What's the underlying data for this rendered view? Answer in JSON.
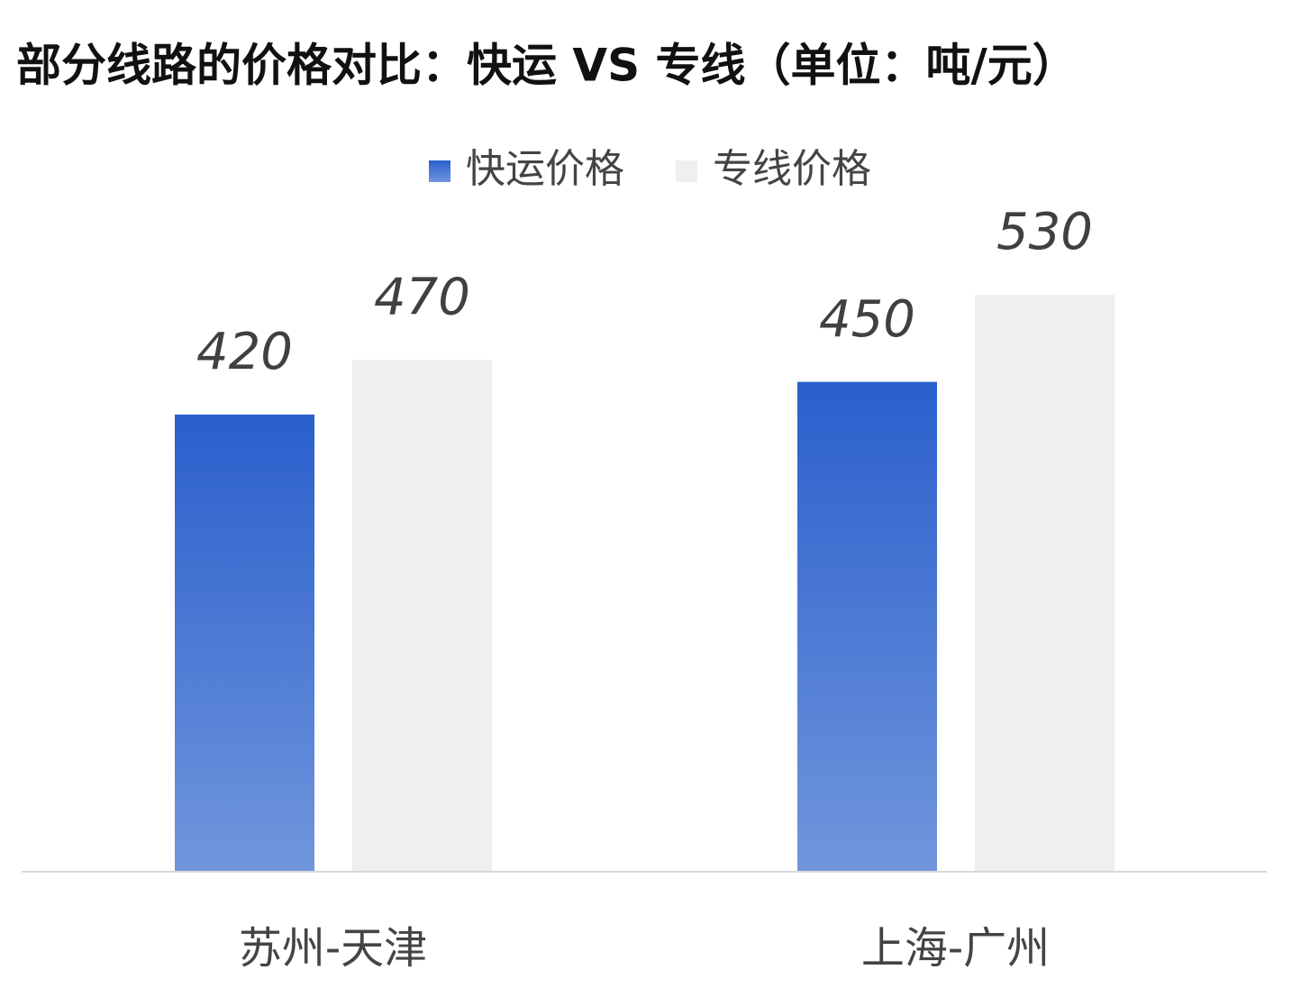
{
  "chart_data": {
    "type": "bar",
    "title": "部分线路的价格对比：快运 VS 专线（单位：吨/元）",
    "categories": [
      "苏州-天津",
      "上海-广州"
    ],
    "series": [
      {
        "name": "快运价格",
        "color": "#2a5fcc",
        "values": [
          420,
          450
        ]
      },
      {
        "name": "专线价格",
        "color": "#efefef",
        "values": [
          470,
          530
        ]
      }
    ],
    "legend": "top"
  }
}
